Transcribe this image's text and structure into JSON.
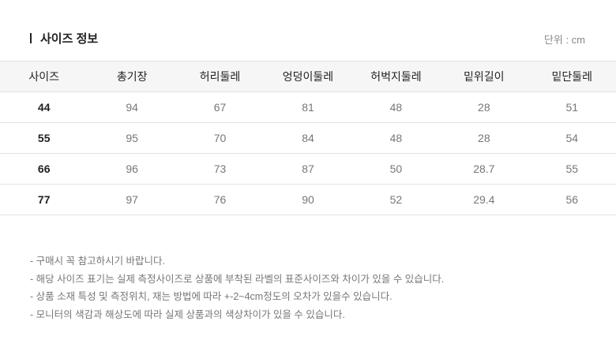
{
  "header": {
    "title": "사이즈 정보",
    "unit": "단위 : cm"
  },
  "table": {
    "columns": [
      "사이즈",
      "총기장",
      "허리둘레",
      "엉덩이둘레",
      "허벅지둘레",
      "밑위길이",
      "밑단둘레"
    ],
    "rows": [
      [
        "44",
        "94",
        "67",
        "81",
        "48",
        "28",
        "51"
      ],
      [
        "55",
        "95",
        "70",
        "84",
        "48",
        "28",
        "54"
      ],
      [
        "66",
        "96",
        "73",
        "87",
        "50",
        "28.7",
        "55"
      ],
      [
        "77",
        "97",
        "76",
        "90",
        "52",
        "29.4",
        "56"
      ]
    ]
  },
  "notes": [
    "- 구매시 꼭 참고하시기 바랍니다.",
    "- 해당 사이즈 표기는 실제 측정사이즈로 상품에 부착된 라벨의 표준사이즈와 차이가 있을 수 있습니다.",
    "- 상품 소재 특성 및 측정위치, 재는 방법에 따라 +-2~4cm정도의 오차가 있을수 있습니다.",
    "- 모니터의 색감과 해상도에 따라 실제 상품과의 색상차이가 있을 수 있습니다."
  ]
}
